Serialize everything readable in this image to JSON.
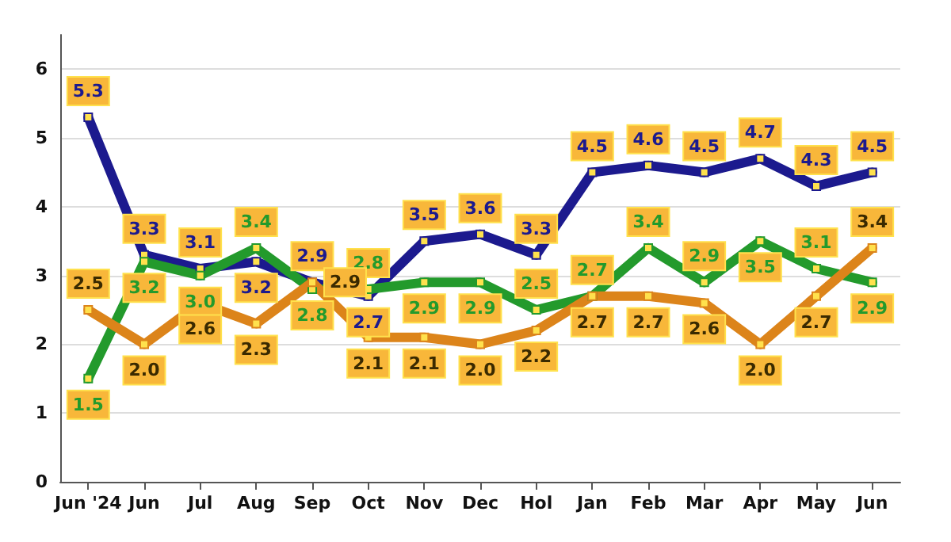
{
  "chart_data": {
    "type": "line",
    "categories": [
      "Jun '24",
      "Jun",
      "Jul",
      "Aug",
      "Sep",
      "Oct",
      "Nov",
      "Dec",
      "Hol",
      "Jan",
      "Feb",
      "Mar",
      "Apr",
      "May",
      "Jun"
    ],
    "series": [
      {
        "color": "#1c1a8e",
        "values": [
          5.3,
          3.3,
          3.1,
          3.2,
          2.9,
          2.7,
          3.5,
          3.6,
          3.3,
          4.5,
          4.6,
          4.5,
          4.7,
          4.3,
          4.5
        ],
        "value_labels": [
          "5.3",
          "3.3",
          "3.1",
          "3.2",
          "2.9",
          "2.7",
          "3.5",
          "3.6",
          "3.3",
          "4.5",
          "4.6",
          "4.5",
          "4.7",
          "4.3",
          "4.5"
        ]
      },
      {
        "color": "#239a2c",
        "values": [
          1.5,
          3.2,
          3.0,
          3.4,
          2.8,
          2.8,
          2.9,
          2.9,
          2.5,
          2.7,
          3.4,
          2.9,
          3.5,
          3.1,
          2.9
        ],
        "value_labels": [
          "1.5",
          "3.2",
          "3.0",
          "3.4",
          "2.8",
          "2.8",
          "2.9",
          "2.9",
          "2.5",
          "2.7",
          "3.4",
          "2.9",
          "3.5",
          "3.1",
          "2.9"
        ]
      },
      {
        "color": "#dc841a",
        "values": [
          2.5,
          2.0,
          2.6,
          2.3,
          2.9,
          2.1,
          2.1,
          2.0,
          2.2,
          2.7,
          2.7,
          2.6,
          2.0,
          2.7,
          3.4
        ],
        "value_labels": [
          "2.5",
          "2.0",
          "2.6",
          "2.3",
          "2.9",
          "2.1",
          "2.1",
          "2.0",
          "2.2",
          "2.7",
          "2.7",
          "2.6",
          "2.0",
          "2.7",
          "3.4"
        ]
      }
    ],
    "ylim": [
      0,
      6.5
    ],
    "yticks": [
      0,
      1,
      2,
      3,
      4,
      5,
      6
    ],
    "grid": "y",
    "marker": "square",
    "line_style": "solid"
  }
}
